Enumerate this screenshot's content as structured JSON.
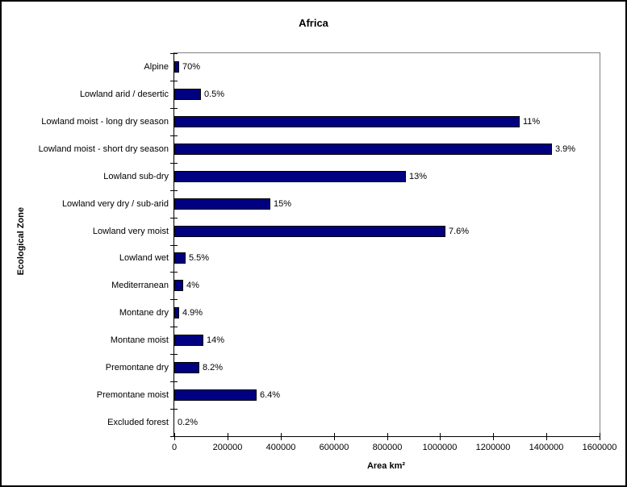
{
  "window": {
    "background": "#FFFFFF",
    "border_color": "#000000"
  },
  "chart_data": {
    "type": "bar",
    "orientation": "horizontal",
    "title": "Africa",
    "xlabel": "Area km²",
    "ylabel": "Ecological Zone",
    "xlim": [
      0,
      1600000
    ],
    "x_ticks": [
      0,
      200000,
      400000,
      600000,
      800000,
      1000000,
      1200000,
      1400000,
      1600000
    ],
    "x_tick_labels": [
      "0",
      "200000",
      "400000",
      "600000",
      "800000",
      "1000000",
      "1200000",
      "1400000",
      "1600000"
    ],
    "grid": false,
    "legend": "none",
    "bar_color": "#000080",
    "bar_border_color": "#000000",
    "plot_border_color": "#808080",
    "axis_color": "#000000",
    "categories": [
      "Alpine",
      "Lowland arid / desertic",
      "Lowland moist - long dry season",
      "Lowland moist - short dry season",
      "Lowland sub-dry",
      "Lowland very dry / sub-arid",
      "Lowland very moist",
      "Lowland wet",
      "Mediterranean",
      "Montane dry",
      "Montane moist",
      "Premontane dry",
      "Premontane moist",
      "Excluded forest"
    ],
    "values": [
      18000,
      100000,
      1300000,
      1420000,
      870000,
      360000,
      1020000,
      43000,
      33000,
      18000,
      110000,
      94000,
      310000,
      0
    ],
    "data_labels": [
      "70%",
      "0.5%",
      "11%",
      "3.9%",
      "13%",
      "15%",
      "7.6%",
      "5.5%",
      "4%",
      "4.9%",
      "14%",
      "8.2%",
      "6.4%",
      "0.2%"
    ]
  }
}
